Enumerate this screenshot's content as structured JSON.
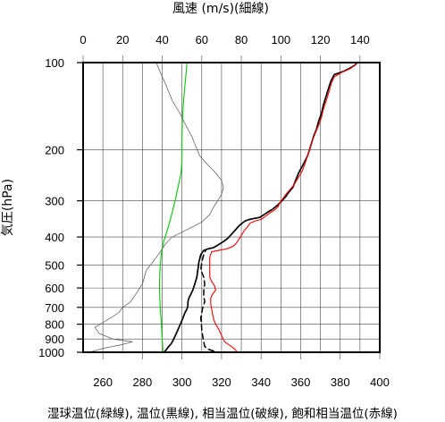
{
  "chart_data": {
    "type": "line",
    "top_axis_title": "風速 (m/s)(細線)",
    "left_axis_title": "気圧(hPa)",
    "bottom_title": "湿球温位(緑線), 温位(黒線), 相当温位(破線), 飽和相当温位(赤線)",
    "x_theta": {
      "ticks": [
        260,
        280,
        300,
        320,
        340,
        360,
        380,
        400
      ],
      "labels": [
        "260",
        "280",
        "300",
        "320",
        "340",
        "360",
        "380",
        "400"
      ],
      "range": [
        250,
        400
      ]
    },
    "x_wind": {
      "ticks": [
        0,
        20,
        40,
        60,
        80,
        100,
        120,
        140
      ],
      "labels": [
        "0",
        "20",
        "40",
        "60",
        "80",
        "100",
        "120",
        "140"
      ],
      "range": [
        0,
        150
      ]
    },
    "y_pressure": {
      "ticks": [
        100,
        200,
        300,
        400,
        500,
        600,
        700,
        800,
        900,
        1000
      ],
      "labels": [
        "100",
        "200",
        "300",
        "400",
        "500",
        "600",
        "700",
        "800",
        "900",
        "1000"
      ],
      "range": [
        100,
        1000
      ],
      "scale": "log",
      "reversed": true
    },
    "grid": true,
    "series": [
      {
        "id": "wet_bulb_theta",
        "axis": "theta",
        "color": "#00cc00",
        "width": 1.1,
        "dash": "",
        "points": [
          [
            290.5,
            1000
          ],
          [
            290.2,
            950
          ],
          [
            290.0,
            900
          ],
          [
            289.8,
            850
          ],
          [
            289.6,
            800
          ],
          [
            289.3,
            750
          ],
          [
            289.0,
            700
          ],
          [
            288.8,
            650
          ],
          [
            288.6,
            600
          ],
          [
            288.7,
            550
          ],
          [
            289.0,
            500
          ],
          [
            289.5,
            460
          ],
          [
            290.3,
            430
          ],
          [
            291.0,
            410
          ],
          [
            292.0,
            390
          ],
          [
            293.0,
            370
          ],
          [
            294.0,
            350
          ],
          [
            295.0,
            330
          ],
          [
            296.5,
            300
          ],
          [
            298.0,
            270
          ],
          [
            299.5,
            240
          ],
          [
            300.0,
            220
          ],
          [
            300.0,
            200
          ],
          [
            300.0,
            180
          ],
          [
            300.2,
            160
          ],
          [
            300.5,
            145
          ],
          [
            301.0,
            130
          ],
          [
            301.5,
            120
          ],
          [
            302.0,
            110
          ],
          [
            302.5,
            100
          ]
        ]
      },
      {
        "id": "theta",
        "axis": "theta",
        "color": "#000000",
        "width": 1.7,
        "dash": "",
        "points": [
          [
            291.0,
            1000
          ],
          [
            292.0,
            980
          ],
          [
            293.0,
            960
          ],
          [
            294.5,
            935
          ],
          [
            295.5,
            910
          ],
          [
            296.5,
            880
          ],
          [
            297.5,
            850
          ],
          [
            298.5,
            820
          ],
          [
            299.5,
            790
          ],
          [
            300.5,
            760
          ],
          [
            301.5,
            730
          ],
          [
            302.5,
            710
          ],
          [
            303.0,
            690
          ],
          [
            303.0,
            670
          ],
          [
            303.5,
            650
          ],
          [
            304.5,
            630
          ],
          [
            305.5,
            610
          ],
          [
            306.5,
            580
          ],
          [
            307.5,
            550
          ],
          [
            308.0,
            520
          ],
          [
            308.5,
            490
          ],
          [
            309.5,
            460
          ],
          [
            311.0,
            445
          ],
          [
            313.0,
            440
          ],
          [
            316.0,
            435
          ],
          [
            318.5,
            425
          ],
          [
            321.0,
            415
          ],
          [
            323.0,
            405
          ],
          [
            324.5,
            395
          ],
          [
            326.0,
            385
          ],
          [
            327.5,
            375
          ],
          [
            329.0,
            365
          ],
          [
            330.5,
            358
          ],
          [
            332.0,
            352
          ],
          [
            334.0,
            348
          ],
          [
            336.5,
            345
          ],
          [
            339.5,
            342
          ],
          [
            341.5,
            335
          ],
          [
            343.5,
            328
          ],
          [
            346.0,
            320
          ],
          [
            348.5,
            310
          ],
          [
            350.5,
            300
          ],
          [
            352.5,
            290
          ],
          [
            354.0,
            280
          ],
          [
            356.0,
            270
          ],
          [
            357.0,
            260
          ],
          [
            358.0,
            250
          ],
          [
            359.0,
            240
          ],
          [
            360.5,
            230
          ],
          [
            362.0,
            220
          ],
          [
            363.5,
            210
          ],
          [
            364.5,
            200
          ],
          [
            365.5,
            190
          ],
          [
            366.5,
            180
          ],
          [
            368.0,
            170
          ],
          [
            369.0,
            160
          ],
          [
            370.5,
            150
          ],
          [
            371.5,
            140
          ],
          [
            373.0,
            130
          ],
          [
            374.5,
            120
          ],
          [
            375.5,
            115
          ],
          [
            377.0,
            110
          ],
          [
            382.0,
            107
          ],
          [
            385.5,
            104
          ],
          [
            387.5,
            102
          ],
          [
            388.5,
            100
          ]
        ]
      },
      {
        "id": "equiv_theta",
        "axis": "theta",
        "color": "#000000",
        "width": 1.5,
        "dash": "6,4",
        "points": [
          [
            316.0,
            990
          ],
          [
            313.0,
            975
          ],
          [
            311.5,
            955
          ],
          [
            311.0,
            920
          ],
          [
            310.5,
            880
          ],
          [
            310.0,
            840
          ],
          [
            309.8,
            800
          ],
          [
            309.5,
            760
          ],
          [
            310.0,
            730
          ],
          [
            310.5,
            700
          ],
          [
            311.5,
            670
          ],
          [
            311.0,
            640
          ],
          [
            311.0,
            610
          ],
          [
            311.5,
            580
          ],
          [
            311.0,
            550
          ],
          [
            309.5,
            520
          ],
          [
            310.0,
            490
          ],
          [
            311.0,
            460
          ],
          [
            312.0,
            445
          ]
        ]
      },
      {
        "id": "sat_equiv_theta",
        "axis": "theta",
        "color": "#ff0000",
        "width": 1.1,
        "dash": "",
        "points": [
          [
            328.0,
            1000
          ],
          [
            327.0,
            980
          ],
          [
            325.5,
            960
          ],
          [
            323.5,
            940
          ],
          [
            321.5,
            920
          ],
          [
            320.5,
            890
          ],
          [
            319.5,
            860
          ],
          [
            318.5,
            830
          ],
          [
            317.0,
            800
          ],
          [
            316.0,
            770
          ],
          [
            315.5,
            740
          ],
          [
            315.0,
            710
          ],
          [
            314.5,
            680
          ],
          [
            314.5,
            650
          ],
          [
            315.5,
            630
          ],
          [
            317.0,
            610
          ],
          [
            316.5,
            590
          ],
          [
            315.0,
            570
          ],
          [
            314.0,
            550
          ],
          [
            314.0,
            520
          ],
          [
            314.0,
            490
          ],
          [
            314.0,
            470
          ],
          [
            315.0,
            450
          ],
          [
            320.0,
            443
          ],
          [
            322.5,
            440
          ],
          [
            326.0,
            430
          ],
          [
            327.5,
            420
          ],
          [
            328.5,
            410
          ],
          [
            329.5,
            400
          ],
          [
            330.5,
            390
          ],
          [
            331.5,
            380
          ],
          [
            333.0,
            370
          ],
          [
            334.5,
            358
          ],
          [
            337.0,
            352
          ],
          [
            340.0,
            348
          ],
          [
            342.0,
            340
          ],
          [
            344.5,
            330
          ],
          [
            347.0,
            322
          ],
          [
            348.5,
            315
          ],
          [
            349.5,
            305
          ],
          [
            351.0,
            295
          ],
          [
            352.5,
            285
          ],
          [
            354.5,
            275
          ],
          [
            356.5,
            265
          ],
          [
            358.0,
            255
          ],
          [
            359.5,
            245
          ],
          [
            361.0,
            235
          ],
          [
            362.0,
            225
          ],
          [
            363.0,
            215
          ],
          [
            364.0,
            205
          ],
          [
            365.0,
            195
          ],
          [
            366.0,
            185
          ],
          [
            367.5,
            175
          ],
          [
            369.0,
            165
          ],
          [
            370.5,
            155
          ],
          [
            371.5,
            145
          ],
          [
            373.0,
            135
          ],
          [
            374.5,
            125
          ],
          [
            375.5,
            118
          ],
          [
            377.0,
            112
          ],
          [
            381.0,
            108
          ],
          [
            385.0,
            105
          ],
          [
            387.5,
            102
          ],
          [
            389.0,
            100
          ]
        ]
      },
      {
        "id": "wind_speed",
        "axis": "wind",
        "color": "#666666",
        "width": 0.8,
        "dash": "",
        "points": [
          [
            3,
            1000
          ],
          [
            10,
            970
          ],
          [
            20,
            940
          ],
          [
            25,
            920
          ],
          [
            15,
            900
          ],
          [
            8,
            860
          ],
          [
            6,
            820
          ],
          [
            10,
            790
          ],
          [
            14,
            760
          ],
          [
            18,
            730
          ],
          [
            20,
            700
          ],
          [
            24,
            670
          ],
          [
            26,
            640
          ],
          [
            28,
            610
          ],
          [
            30,
            580
          ],
          [
            31,
            550
          ],
          [
            32,
            520
          ],
          [
            34,
            500
          ],
          [
            36,
            480
          ],
          [
            38,
            460
          ],
          [
            40,
            440
          ],
          [
            42,
            420
          ],
          [
            45,
            400
          ],
          [
            50,
            385
          ],
          [
            55,
            370
          ],
          [
            60,
            355
          ],
          [
            64,
            335
          ],
          [
            66,
            315
          ],
          [
            68,
            300
          ],
          [
            70,
            285
          ],
          [
            71,
            270
          ],
          [
            70,
            255
          ],
          [
            67,
            240
          ],
          [
            63,
            225
          ],
          [
            59,
            210
          ],
          [
            57,
            195
          ],
          [
            55,
            180
          ],
          [
            52,
            165
          ],
          [
            49,
            150
          ],
          [
            45,
            135
          ],
          [
            42,
            120
          ],
          [
            39,
            108
          ],
          [
            37,
            100
          ]
        ]
      }
    ]
  }
}
